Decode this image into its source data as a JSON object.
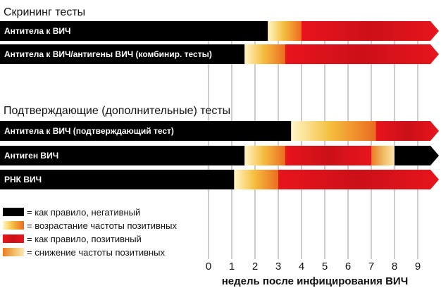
{
  "chart_data": {
    "type": "bar",
    "orientation": "horizontal",
    "xlabel": "недель после инфицирования ВИЧ",
    "xlim": [
      0,
      9
    ],
    "xticks": [
      0,
      1,
      2,
      3,
      4,
      5,
      6,
      7,
      8,
      9
    ],
    "grid": "vertical",
    "legend_position": "bottom-left",
    "colors": {
      "negative": "#000000",
      "rising": "#f5c040",
      "rising_light": "#fff6c8",
      "positive": "#e8141c",
      "positive_dark": "#cc1018",
      "falling": "#f0c06a",
      "grid": "#555555"
    },
    "legend": [
      {
        "state": "negative",
        "label": "= как правило, негативный"
      },
      {
        "state": "rising",
        "label": "= возрастание частоты позитивных"
      },
      {
        "state": "positive",
        "label": "= как правило, позитивный"
      },
      {
        "state": "falling",
        "label": "= снижение частоты позитивных"
      }
    ],
    "groups": [
      {
        "title": "Скрининг тесты",
        "rows": [
          {
            "label": "Антитела к ВИЧ",
            "segments": [
              {
                "state": "negative",
                "from": -9,
                "to": 2.55
              },
              {
                "state": "rising",
                "from": 2.55,
                "to": 4.0
              },
              {
                "state": "positive",
                "from": 4.0,
                "to": 9.6
              }
            ]
          },
          {
            "label": "Антитела к ВИЧ/антигены ВИЧ (комбинир. тесты)",
            "segments": [
              {
                "state": "negative",
                "from": -9,
                "to": 1.55
              },
              {
                "state": "rising",
                "from": 1.55,
                "to": 3.3
              },
              {
                "state": "positive",
                "from": 3.3,
                "to": 9.6
              }
            ]
          }
        ]
      },
      {
        "title": "Подтверждающие (дополнительные) тесты",
        "rows": [
          {
            "label": "Антитела к ВИЧ (подтверждающий тест)",
            "segments": [
              {
                "state": "negative",
                "from": -9,
                "to": 3.55
              },
              {
                "state": "rising",
                "from": 3.55,
                "to": 7.2
              },
              {
                "state": "positive",
                "from": 7.2,
                "to": 9.6
              }
            ]
          },
          {
            "label": "Антиген ВИЧ",
            "segments": [
              {
                "state": "negative",
                "from": -9,
                "to": 1.55
              },
              {
                "state": "rising",
                "from": 1.55,
                "to": 3.3
              },
              {
                "state": "positive",
                "from": 3.3,
                "to": 7.0
              },
              {
                "state": "falling",
                "from": 7.0,
                "to": 8.0
              },
              {
                "state": "negative",
                "from": 8.0,
                "to": 9.6
              }
            ]
          },
          {
            "label": "РНК ВИЧ",
            "segments": [
              {
                "state": "negative",
                "from": -9,
                "to": 1.1
              },
              {
                "state": "rising",
                "from": 1.1,
                "to": 3.0
              },
              {
                "state": "positive",
                "from": 3.0,
                "to": 9.6
              }
            ]
          }
        ]
      }
    ]
  }
}
